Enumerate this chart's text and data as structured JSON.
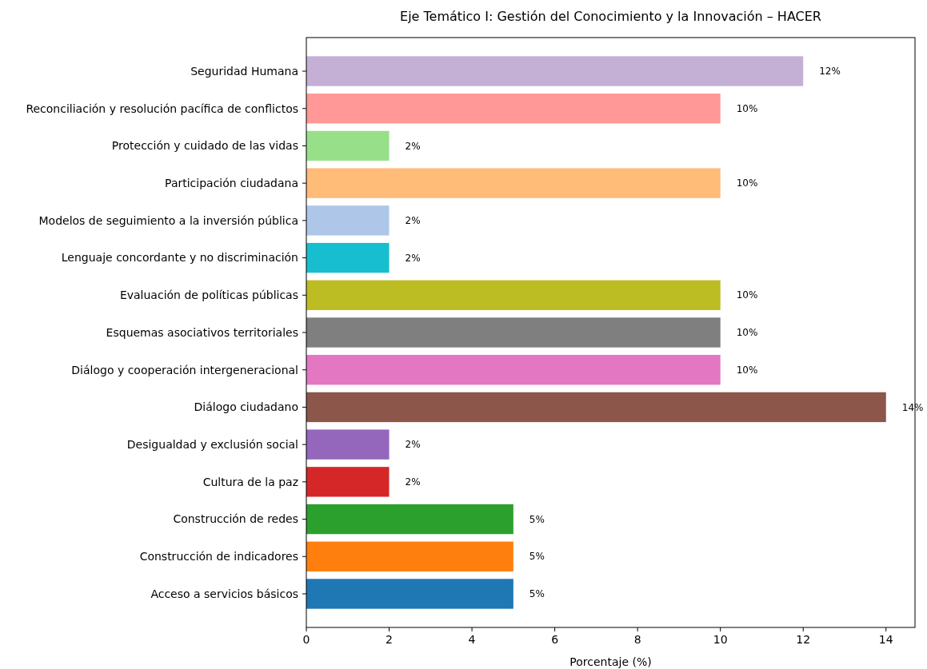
{
  "chart_data": {
    "type": "bar",
    "orientation": "horizontal",
    "title": "Eje Temático I: Gestión del Conocimiento y la Innovación – HACER",
    "xlabel": "Porcentaje (%)",
    "categories": [
      "Seguridad Humana",
      "Reconciliación y resolución pacífica de conflictos",
      "Protección y cuidado de las vidas",
      "Participación ciudadana",
      "Modelos de seguimiento a la inversión pública",
      "Lenguaje concordante y no discriminación",
      "Evaluación de políticas públicas",
      "Esquemas asociativos territoriales",
      "Diálogo y cooperación intergeneracional",
      "Diálogo ciudadano",
      "Desigualdad y exclusión social",
      "Cultura de la paz",
      "Construcción de redes",
      "Construcción de indicadores",
      "Acceso a servicios básicos"
    ],
    "values": [
      12,
      10,
      2,
      10,
      2,
      2,
      10,
      10,
      10,
      14,
      2,
      2,
      5,
      5,
      5
    ],
    "value_labels": [
      "12%",
      "10%",
      "2%",
      "10%",
      "2%",
      "2%",
      "10%",
      "10%",
      "10%",
      "14%",
      "2%",
      "2%",
      "5%",
      "5%",
      "5%"
    ],
    "colors": [
      "#c5b0d5",
      "#ff9896",
      "#98df8a",
      "#ffbb78",
      "#aec7e8",
      "#17becf",
      "#bcbd22",
      "#7f7f7f",
      "#e377c2",
      "#8c564b",
      "#9467bd",
      "#d62728",
      "#2ca02c",
      "#ff7f0e",
      "#1f77b4"
    ],
    "xlim": [
      0,
      14.7
    ],
    "xticks": [
      0,
      2,
      4,
      6,
      8,
      10,
      12,
      14
    ],
    "grid": false
  }
}
